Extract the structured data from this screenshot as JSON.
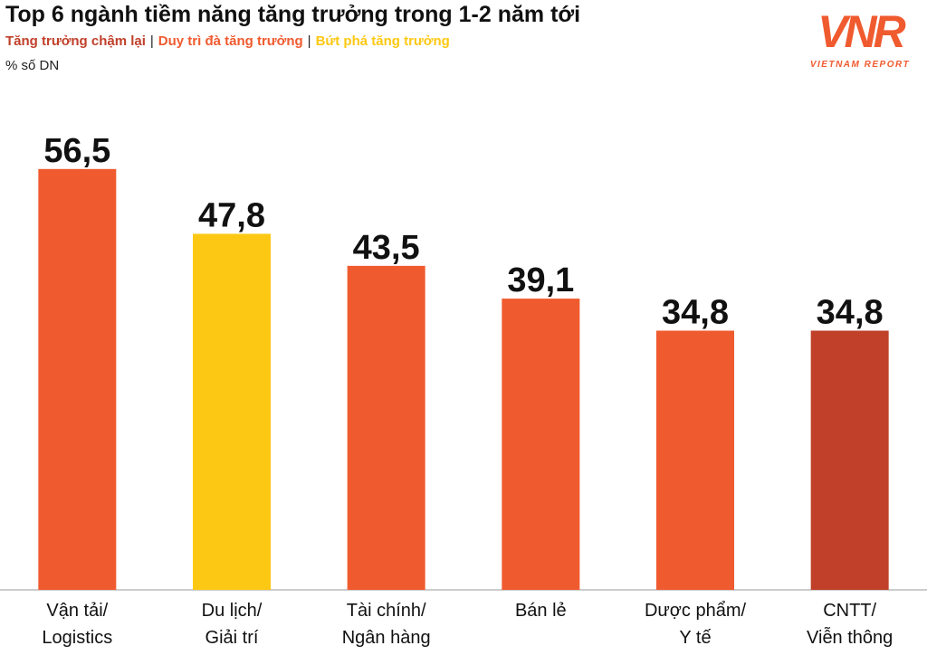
{
  "chart_data": {
    "type": "bar",
    "title": "Top 6 ngành tiềm năng tăng trưởng trong 1-2 năm tới",
    "legend": [
      {
        "name": "Tăng trưởng chậm lại",
        "color": "#c0402a"
      },
      {
        "name": "Duy trì đà tăng trưởng",
        "color": "#f05a2f"
      },
      {
        "name": "Bứt phá tăng trưởng",
        "color": "#fdc813"
      }
    ],
    "legend_separator": "|",
    "y_label": "% số DN",
    "categories": [
      "Vận tải/\nLogistics",
      "Du lịch/\nGiải trí",
      "Tài chính/\nNgân hàng",
      "Bán lẻ",
      "Dược phẩm/\nY tế",
      "CNTT/\nViễn thông"
    ],
    "values": [
      56.5,
      47.8,
      43.5,
      39.1,
      34.8,
      34.8
    ],
    "value_labels": [
      "56,5",
      "47,8",
      "43,5",
      "39,1",
      "34,8",
      "34,8"
    ],
    "colors": [
      "#f05a2f",
      "#fdc813",
      "#f05a2f",
      "#f05a2f",
      "#f05a2f",
      "#c0402a"
    ],
    "ylim": [
      0,
      60
    ]
  },
  "logo": {
    "mark": "VNR",
    "text": "VIETNAM REPORT"
  }
}
